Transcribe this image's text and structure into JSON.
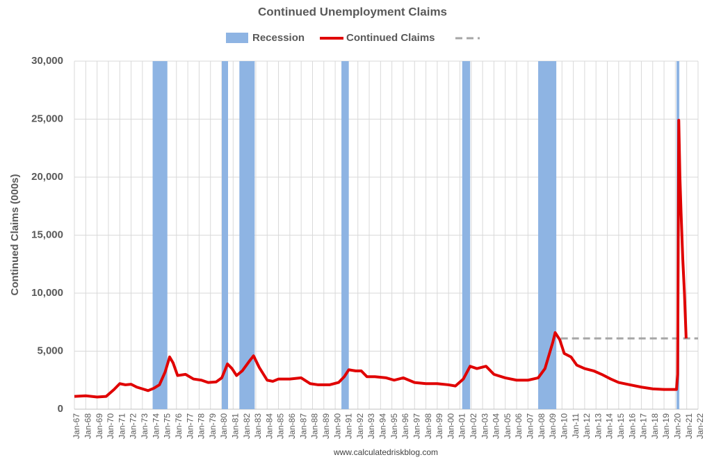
{
  "chart_data": {
    "type": "line",
    "title": "Continued Unemployment Claims",
    "y_label": "Continued Claims (000s)",
    "source": "www.calculatedriskblog.com",
    "recession_name": "Recession",
    "recession_color": "#8eb4e3",
    "recessions": [
      [
        1973.9,
        1975.2
      ],
      [
        1980.0,
        1980.55
      ],
      [
        1981.55,
        1982.9
      ],
      [
        1990.55,
        1991.2
      ],
      [
        2001.2,
        2001.9
      ],
      [
        2007.9,
        2009.5
      ],
      [
        2020.1,
        2020.35
      ]
    ],
    "reference_line": {
      "value": 6100,
      "xrange": [
        2009.9,
        2022
      ],
      "color": "#a6a6a6"
    },
    "series": [
      {
        "name": "Continued Claims",
        "color": "#e00000",
        "x": [
          1967.0,
          1968.0,
          1969.0,
          1969.8,
          1970.5,
          1971.0,
          1971.5,
          1972.0,
          1972.5,
          1973.0,
          1973.5,
          1974.0,
          1974.5,
          1975.0,
          1975.4,
          1975.7,
          1976.1,
          1976.8,
          1977.5,
          1978.2,
          1978.8,
          1979.5,
          1980.0,
          1980.5,
          1980.9,
          1981.3,
          1981.8,
          1982.4,
          1982.8,
          1983.3,
          1984.0,
          1984.5,
          1985.0,
          1986.0,
          1987.0,
          1987.8,
          1988.5,
          1989.5,
          1990.3,
          1990.8,
          1991.2,
          1991.8,
          1992.3,
          1992.8,
          1993.5,
          1994.5,
          1995.2,
          1996.0,
          1997.0,
          1998.0,
          1999.0,
          2000.0,
          2000.6,
          2001.3,
          2001.9,
          2002.5,
          2003.3,
          2004.0,
          2005.0,
          2006.0,
          2007.0,
          2007.9,
          2008.5,
          2009.2,
          2009.4,
          2009.8,
          2010.2,
          2010.8,
          2011.3,
          2012.0,
          2012.8,
          2013.5,
          2014.3,
          2015.0,
          2016.0,
          2017.0,
          2018.0,
          2019.0,
          2020.1,
          2020.2,
          2020.3,
          2020.4,
          2020.5,
          2020.65,
          2020.8,
          2020.95
        ],
        "values": [
          1100,
          1150,
          1050,
          1100,
          1700,
          2200,
          2100,
          2150,
          1900,
          1750,
          1600,
          1800,
          2100,
          3200,
          4500,
          4000,
          2900,
          3000,
          2600,
          2500,
          2300,
          2350,
          2700,
          3900,
          3500,
          2900,
          3300,
          4100,
          4600,
          3600,
          2500,
          2400,
          2600,
          2600,
          2700,
          2200,
          2100,
          2100,
          2300,
          2800,
          3400,
          3300,
          3300,
          2800,
          2800,
          2700,
          2500,
          2700,
          2300,
          2200,
          2200,
          2100,
          2000,
          2600,
          3700,
          3500,
          3700,
          3000,
          2700,
          2500,
          2500,
          2700,
          3500,
          5800,
          6600,
          6000,
          4800,
          4500,
          3800,
          3500,
          3300,
          3000,
          2600,
          2300,
          2100,
          1900,
          1750,
          1700,
          1700,
          3000,
          24900,
          20000,
          17000,
          13000,
          10000,
          6100
        ]
      }
    ],
    "xlim": [
      1967,
      2022
    ],
    "xticks": [
      {
        "value": 1967,
        "label": "Jan-67"
      },
      {
        "value": 1968,
        "label": "Jan-68"
      },
      {
        "value": 1969,
        "label": "Jan-69"
      },
      {
        "value": 1970,
        "label": "Jan-70"
      },
      {
        "value": 1971,
        "label": "Jan-71"
      },
      {
        "value": 1972,
        "label": "Jan-72"
      },
      {
        "value": 1973,
        "label": "Jan-73"
      },
      {
        "value": 1974,
        "label": "Jan-74"
      },
      {
        "value": 1975,
        "label": "Jan-75"
      },
      {
        "value": 1976,
        "label": "Jan-76"
      },
      {
        "value": 1977,
        "label": "Jan-77"
      },
      {
        "value": 1978,
        "label": "Jan-78"
      },
      {
        "value": 1979,
        "label": "Jan-79"
      },
      {
        "value": 1980,
        "label": "Jan-80"
      },
      {
        "value": 1981,
        "label": "Jan-81"
      },
      {
        "value": 1982,
        "label": "Jan-82"
      },
      {
        "value": 1983,
        "label": "Jan-83"
      },
      {
        "value": 1984,
        "label": "Jan-84"
      },
      {
        "value": 1985,
        "label": "Jan-85"
      },
      {
        "value": 1986,
        "label": "Jan-86"
      },
      {
        "value": 1987,
        "label": "Jan-87"
      },
      {
        "value": 1988,
        "label": "Jan-88"
      },
      {
        "value": 1989,
        "label": "Jan-89"
      },
      {
        "value": 1990,
        "label": "Jan-90"
      },
      {
        "value": 1991,
        "label": "Jan-91"
      },
      {
        "value": 1992,
        "label": "Jan-92"
      },
      {
        "value": 1993,
        "label": "Jan-93"
      },
      {
        "value": 1994,
        "label": "Jan-94"
      },
      {
        "value": 1995,
        "label": "Jan-95"
      },
      {
        "value": 1996,
        "label": "Jan-96"
      },
      {
        "value": 1997,
        "label": "Jan-97"
      },
      {
        "value": 1998,
        "label": "Jan-98"
      },
      {
        "value": 1999,
        "label": "Jan-99"
      },
      {
        "value": 2000,
        "label": "Jan-00"
      },
      {
        "value": 2001,
        "label": "Jan-01"
      },
      {
        "value": 2002,
        "label": "Jan-02"
      },
      {
        "value": 2003,
        "label": "Jan-03"
      },
      {
        "value": 2004,
        "label": "Jan-04"
      },
      {
        "value": 2005,
        "label": "Jan-05"
      },
      {
        "value": 2006,
        "label": "Jan-06"
      },
      {
        "value": 2007,
        "label": "Jan-07"
      },
      {
        "value": 2008,
        "label": "Jan-08"
      },
      {
        "value": 2009,
        "label": "Jan-09"
      },
      {
        "value": 2010,
        "label": "Jan-10"
      },
      {
        "value": 2011,
        "label": "Jan-11"
      },
      {
        "value": 2012,
        "label": "Jan-12"
      },
      {
        "value": 2013,
        "label": "Jan-13"
      },
      {
        "value": 2014,
        "label": "Jan-14"
      },
      {
        "value": 2015,
        "label": "Jan-15"
      },
      {
        "value": 2016,
        "label": "Jan-16"
      },
      {
        "value": 2017,
        "label": "Jan-17"
      },
      {
        "value": 2018,
        "label": "Jan-18"
      },
      {
        "value": 2019,
        "label": "Jan-19"
      },
      {
        "value": 2020,
        "label": "Jan-20"
      },
      {
        "value": 2021,
        "label": "Jan-21"
      },
      {
        "value": 2022,
        "label": "Jan-22"
      }
    ],
    "ylim": [
      0,
      30000
    ],
    "yticks": [
      0,
      {
        "value": 5000,
        "label": "5,000"
      },
      {
        "value": 10000,
        "label": "10,000"
      },
      {
        "value": 15000,
        "label": "15,000"
      },
      {
        "value": 20000,
        "label": "20,000"
      },
      {
        "value": 25000,
        "label": "25,000"
      },
      {
        "value": 30000,
        "label": "30,000"
      }
    ],
    "grid": true
  }
}
